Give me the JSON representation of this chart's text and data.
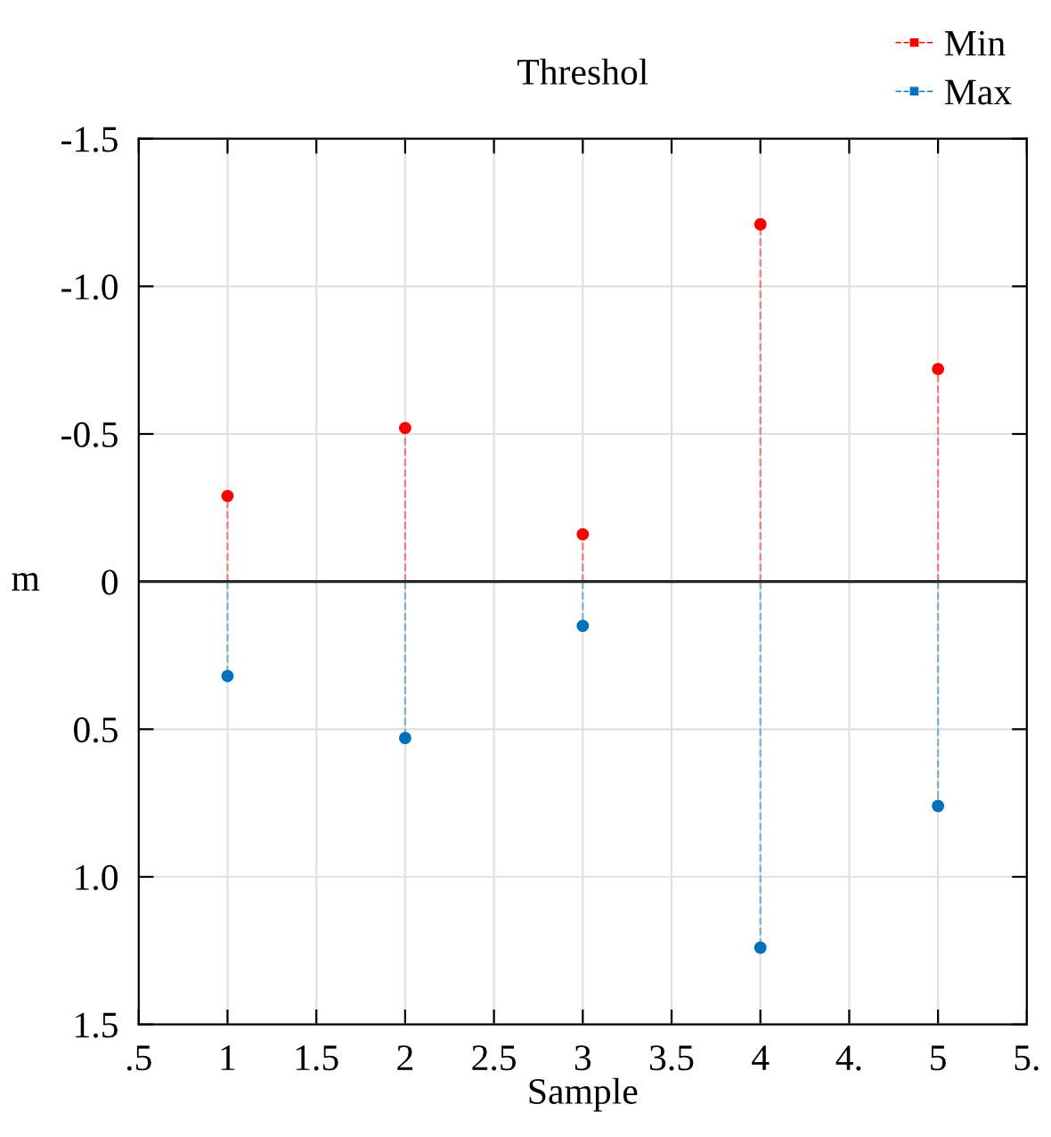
{
  "chart_data": {
    "type": "lollipop",
    "title": "Threshol",
    "xlabel": "Sample",
    "ylabel": "m",
    "x": [
      1,
      2,
      3,
      4,
      5
    ],
    "series": [
      {
        "name": "Min",
        "color": "#ff0000",
        "values": [
          -0.29,
          -0.52,
          -0.16,
          -1.21,
          -0.72
        ]
      },
      {
        "name": "Max",
        "color": "#0072bd",
        "values": [
          0.32,
          0.53,
          0.15,
          1.24,
          0.76
        ]
      }
    ],
    "xlim": [
      0.5,
      5.5
    ],
    "xticks": [
      {
        "value": 0.5,
        "label": ".5"
      },
      1,
      1.5,
      2,
      2.5,
      3,
      3.5,
      4,
      {
        "value": 4.5,
        "label": "4."
      },
      5,
      {
        "value": 5.5,
        "label": "5."
      }
    ],
    "ylim": [
      1.5,
      -1.5
    ],
    "yticks": [
      {
        "value": -1.5,
        "label": "-1.5"
      },
      {
        "value": -1.0,
        "label": "-1.0"
      },
      {
        "value": -0.5,
        "label": "-0.5"
      },
      {
        "value": 0,
        "label": "0"
      },
      {
        "value": 0.5,
        "label": "0.5"
      },
      {
        "value": 1.0,
        "label": "1.0"
      },
      {
        "value": 1.5,
        "label": "1.5"
      }
    ],
    "ref_lines": [
      {
        "axis": "y",
        "value": 0,
        "color": "#262626"
      }
    ],
    "grid": true,
    "legend": "top right",
    "marker": "circle",
    "line_style": "dashed"
  }
}
